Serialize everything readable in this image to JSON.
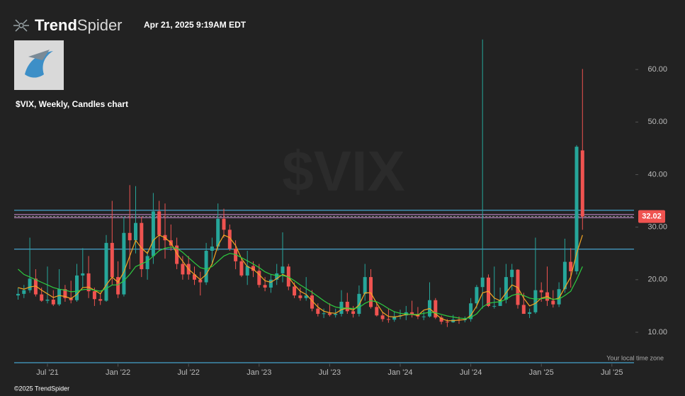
{
  "header": {
    "brand_bold": "Trend",
    "brand_light": "Spider",
    "timestamp": "Apr 21, 2025 9:19AM EDT",
    "chart_label": "$VIX, Weekly, Candles chart"
  },
  "footer": {
    "copyright": "©2025 TrendSpider",
    "timezone": "Your local time zone"
  },
  "chart_data": {
    "type": "candlestick",
    "watermark": "$VIX",
    "categories": [
      null,
      null,
      null,
      null,
      null,
      "Jul '21",
      null,
      null,
      null,
      null,
      null,
      null,
      null,
      null,
      null,
      null,
      null,
      "Jan '22",
      null,
      null,
      null,
      null,
      null,
      null,
      null,
      null,
      null,
      null,
      null,
      "Jul '22",
      null,
      null,
      null,
      null,
      null,
      null,
      null,
      null,
      null,
      null,
      null,
      "Jan '23",
      null,
      null,
      null,
      null,
      null,
      null,
      null,
      null,
      null,
      null,
      null,
      "Jul '23",
      null,
      null,
      null,
      null,
      null,
      null,
      null,
      null,
      null,
      null,
      null,
      "Jan '24",
      null,
      null,
      null,
      null,
      null,
      null,
      null,
      null,
      null,
      null,
      null,
      "Jul '24",
      null,
      null,
      null,
      null,
      null,
      null,
      null,
      null,
      null,
      null,
      null,
      "Jan '25",
      null,
      null,
      null,
      null,
      null,
      null,
      null,
      null,
      null,
      null,
      null,
      "Jul '25",
      null,
      null,
      null
    ],
    "open": [
      17.0,
      17.3,
      18.0,
      20.2,
      17.2,
      16.0,
      16.2,
      15.3,
      18.2,
      16.5,
      16.1,
      20.8,
      21.2,
      17.8,
      16.3,
      16.0,
      27.0,
      20.5,
      17.2,
      28.9,
      27.5,
      30.8,
      22.0,
      24.5,
      33.0,
      28.5,
      27.5,
      26.5,
      23.0,
      23.0,
      21.0,
      20.0,
      19.5,
      25.5,
      26.3,
      31.6,
      29.5,
      25.9,
      23.5,
      20.8,
      22.6,
      21.7,
      19.0,
      18.5,
      20.0,
      21.2,
      22.5,
      18.7,
      17.0,
      16.5,
      17.0,
      14.5,
      13.5,
      13.6,
      13.3,
      13.5,
      15.8,
      14.0,
      13.5,
      17.3,
      20.5,
      14.8,
      13.2,
      12.5,
      12.4,
      13.0,
      13.2,
      13.8,
      13.4,
      13.0,
      13.0,
      16.1,
      12.8,
      12.0,
      11.9,
      12.4,
      12.3,
      12.5,
      15.5,
      18.6,
      20.4,
      15.0,
      15.0,
      16.2,
      20.5,
      21.9,
      15.2,
      13.5,
      13.8,
      18.0,
      17.6,
      16.0,
      15.3,
      18.2,
      23.4,
      21.6,
      44.6,
      null,
      null,
      null,
      null,
      null,
      null,
      null,
      null
    ],
    "high": [
      18.5,
      19.0,
      28.0,
      22.0,
      18.5,
      22.5,
      18.0,
      22.0,
      19.0,
      19.8,
      23.0,
      26.0,
      24.5,
      18.5,
      17.5,
      28.5,
      35.0,
      23.5,
      32.0,
      38.0,
      37.8,
      32.0,
      25.5,
      36.5,
      35.0,
      34.5,
      30.5,
      28.0,
      24.5,
      24.5,
      22.5,
      21.5,
      27.0,
      28.0,
      34.5,
      33.5,
      30.5,
      27.5,
      24.0,
      25.5,
      23.5,
      23.0,
      20.5,
      21.0,
      23.0,
      29.0,
      23.0,
      19.5,
      18.5,
      20.5,
      18.0,
      15.5,
      14.5,
      15.5,
      14.5,
      18.0,
      17.5,
      15.0,
      18.9,
      23.0,
      22.0,
      15.5,
      13.8,
      14.5,
      14.0,
      14.3,
      15.0,
      16.0,
      14.8,
      14.0,
      19.5,
      16.5,
      13.2,
      12.5,
      13.3,
      13.0,
      13.0,
      16.5,
      19.0,
      65.7,
      21.0,
      22.5,
      18.5,
      23.0,
      23.0,
      22.0,
      17.5,
      14.5,
      28.0,
      19.5,
      22.5,
      18.0,
      19.5,
      27.8,
      26.0,
      45.6,
      60.1,
      null,
      null,
      null,
      null,
      null,
      null,
      null,
      null
    ],
    "low": [
      16.2,
      16.5,
      17.5,
      16.8,
      15.8,
      15.5,
      15.0,
      15.0,
      15.8,
      15.5,
      15.8,
      18.5,
      16.5,
      15.0,
      15.2,
      15.8,
      19.0,
      16.5,
      16.8,
      22.0,
      25.0,
      20.5,
      20.0,
      23.0,
      25.5,
      24.0,
      25.5,
      22.0,
      20.0,
      20.0,
      19.0,
      17.0,
      19.0,
      22.8,
      25.5,
      28.0,
      25.5,
      22.0,
      20.5,
      19.0,
      20.5,
      18.5,
      17.8,
      17.5,
      19.0,
      19.5,
      18.0,
      16.5,
      16.0,
      16.0,
      14.0,
      13.0,
      12.7,
      13.0,
      12.8,
      13.0,
      13.5,
      12.8,
      13.0,
      16.0,
      14.5,
      13.0,
      12.0,
      11.8,
      12.0,
      12.5,
      12.3,
      12.8,
      12.5,
      12.3,
      12.8,
      12.5,
      11.5,
      11.0,
      11.8,
      11.6,
      11.9,
      12.0,
      14.5,
      14.5,
      14.8,
      14.5,
      15.0,
      15.5,
      18.0,
      14.5,
      13.5,
      12.7,
      13.5,
      15.8,
      15.0,
      14.7,
      14.8,
      17.5,
      18.5,
      21.0,
      29.5,
      null,
      null,
      null,
      null,
      null,
      null,
      null,
      null
    ],
    "close": [
      17.3,
      18.0,
      20.2,
      17.2,
      16.0,
      16.2,
      15.3,
      18.2,
      16.5,
      16.1,
      20.8,
      21.2,
      17.8,
      16.3,
      16.0,
      27.0,
      20.5,
      17.2,
      28.9,
      27.5,
      30.8,
      22.0,
      24.5,
      33.0,
      28.5,
      27.5,
      26.5,
      23.0,
      21.0,
      21.0,
      20.0,
      19.5,
      25.5,
      26.3,
      31.6,
      29.5,
      25.9,
      23.5,
      20.8,
      22.6,
      21.7,
      19.0,
      18.5,
      20.0,
      21.2,
      22.5,
      18.7,
      17.0,
      16.5,
      17.0,
      14.5,
      13.5,
      13.6,
      13.3,
      13.5,
      15.8,
      14.0,
      13.5,
      17.3,
      20.5,
      14.8,
      13.2,
      12.5,
      12.4,
      13.0,
      13.2,
      13.8,
      13.4,
      13.0,
      13.0,
      16.1,
      12.8,
      12.0,
      11.9,
      12.4,
      12.3,
      12.5,
      15.5,
      18.6,
      20.4,
      15.0,
      15.0,
      16.2,
      20.5,
      21.9,
      15.2,
      13.5,
      13.8,
      18.0,
      17.6,
      16.0,
      15.3,
      18.2,
      23.4,
      21.6,
      45.3,
      32.02,
      null,
      null,
      null,
      null,
      null,
      null,
      null,
      null
    ],
    "up_color": "#26a69a",
    "down_color": "#ef5350",
    "overlays": [
      {
        "color": "#f5a623",
        "values": [
          18.5,
          18.2,
          18.6,
          18.8,
          18.0,
          17.3,
          16.6,
          17.0,
          16.8,
          16.4,
          17.2,
          18.5,
          18.6,
          18.0,
          17.3,
          19.0,
          20.5,
          19.5,
          21.5,
          24.5,
          27.5,
          26.0,
          25.0,
          27.5,
          28.5,
          28.0,
          27.0,
          25.0,
          23.5,
          22.0,
          21.0,
          20.0,
          21.0,
          23.0,
          26.5,
          28.5,
          28.0,
          26.5,
          24.0,
          22.5,
          22.0,
          21.0,
          19.8,
          19.5,
          20.2,
          21.0,
          20.5,
          19.0,
          17.8,
          17.2,
          16.0,
          14.8,
          14.0,
          13.7,
          13.6,
          14.3,
          14.6,
          14.2,
          15.2,
          17.5,
          17.5,
          15.5,
          13.8,
          13.0,
          12.9,
          13.1,
          13.4,
          13.4,
          13.2,
          14.2,
          14.5,
          13.5,
          12.6,
          12.2,
          12.2,
          12.3,
          12.4,
          13.2,
          15.0,
          17.5,
          17.8,
          16.5,
          16.0,
          17.5,
          19.0,
          18.5,
          16.5,
          15.0,
          15.5,
          16.5,
          16.8,
          16.2,
          16.5,
          18.5,
          20.5,
          25.0,
          28.5,
          null,
          null,
          null,
          null,
          null,
          null,
          null,
          null
        ]
      },
      {
        "color": "#2ecc40",
        "values": [
          22.0,
          21.0,
          20.5,
          20.0,
          19.5,
          19.0,
          18.5,
          18.2,
          18.0,
          17.7,
          17.8,
          18.1,
          18.2,
          18.0,
          17.8,
          18.3,
          19.0,
          19.0,
          19.8,
          21.0,
          22.5,
          23.0,
          23.5,
          24.5,
          25.5,
          26.0,
          26.2,
          26.0,
          25.2,
          24.2,
          23.2,
          22.3,
          22.0,
          22.5,
          23.5,
          24.5,
          25.0,
          24.8,
          24.2,
          23.6,
          23.0,
          22.3,
          21.5,
          21.0,
          20.8,
          20.8,
          20.5,
          19.8,
          19.0,
          18.3,
          17.6,
          16.8,
          16.0,
          15.3,
          14.8,
          14.6,
          14.6,
          14.5,
          14.7,
          15.5,
          16.0,
          15.8,
          15.2,
          14.5,
          13.9,
          13.6,
          13.5,
          13.4,
          13.4,
          13.6,
          13.8,
          13.7,
          13.4,
          13.1,
          12.9,
          12.7,
          12.6,
          12.8,
          13.5,
          14.8,
          15.5,
          15.7,
          15.8,
          16.3,
          17.0,
          17.3,
          17.0,
          16.5,
          16.3,
          16.4,
          16.5,
          16.3,
          16.3,
          17.0,
          17.8,
          20.0,
          22.5,
          null,
          null,
          null,
          null,
          null,
          null,
          null,
          null
        ]
      }
    ],
    "levels": [
      {
        "value": 33.2,
        "color": "#4fc3f7"
      },
      {
        "value": 32.4,
        "color": "#ce93d8"
      },
      {
        "value": 31.8,
        "color": "#ce93d8"
      },
      {
        "value": 25.8,
        "color": "#4fc3f7"
      },
      {
        "value": 4.2,
        "color": "#4fc3f7"
      }
    ],
    "last_price": 32.02,
    "last_price_color": "#ef5350",
    "ylim": [
      4,
      65
    ],
    "yticks": [
      {
        "value": 10,
        "label": "10.00"
      },
      {
        "value": 20,
        "label": "20.00"
      },
      {
        "value": 30,
        "label": "30.00"
      },
      {
        "value": 40,
        "label": "40.00"
      },
      {
        "value": 50,
        "label": "50.00"
      },
      {
        "value": 60,
        "label": "60.00"
      }
    ]
  }
}
